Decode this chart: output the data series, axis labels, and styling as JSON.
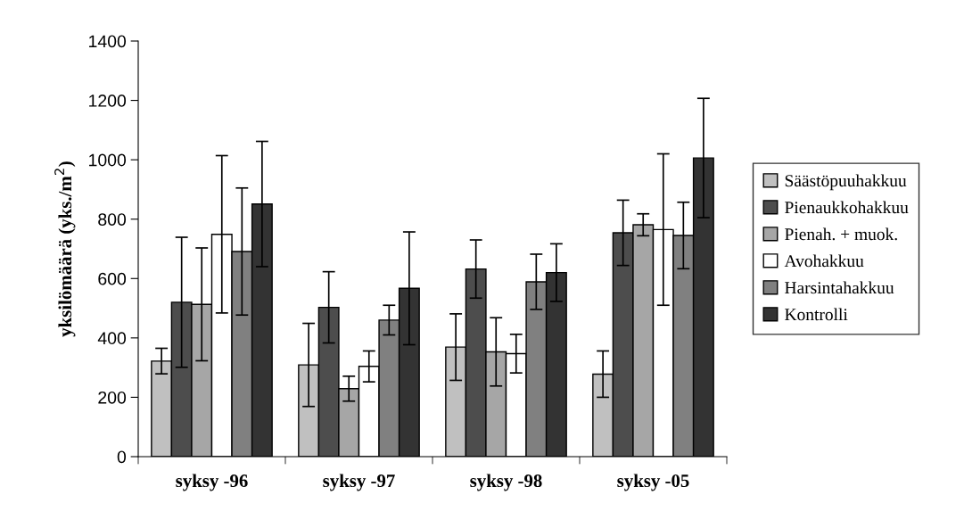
{
  "chart_data": {
    "type": "bar",
    "ylabel": "yksilömäärä (yks./m$^{2}$)",
    "categories": [
      "syksy -96",
      "syksy -97",
      "syksy -98",
      "syksy -05"
    ],
    "series": [
      {
        "name": "Säästöpuuhakkuu",
        "color": "#c0c0c0",
        "values": [
          322,
          309,
          369,
          278
        ],
        "errors": [
          43,
          140,
          112,
          78
        ]
      },
      {
        "name": "Pienaukkohakkuu",
        "color": "#4d4d4d",
        "values": [
          520,
          503,
          632,
          754
        ],
        "errors": [
          219,
          120,
          98,
          110
        ]
      },
      {
        "name": "Pienah. + muok.",
        "color": "#a6a6a6",
        "values": [
          513,
          229,
          353,
          781
        ],
        "errors": [
          190,
          42,
          115,
          37
        ]
      },
      {
        "name": "Avohakkuu",
        "color": "#ffffff",
        "values": [
          749,
          304,
          347,
          765
        ],
        "errors": [
          265,
          52,
          65,
          255
        ]
      },
      {
        "name": "Harsintahakkuu",
        "color": "#808080",
        "values": [
          691,
          460,
          589,
          745
        ],
        "errors": [
          214,
          50,
          93,
          112
        ]
      },
      {
        "name": "Kontrolli",
        "color": "#333333",
        "values": [
          851,
          567,
          620,
          1006
        ],
        "errors": [
          211,
          190,
          97,
          201
        ]
      }
    ],
    "ylim": [
      0,
      1400
    ],
    "yticks": [
      0,
      200,
      400,
      600,
      800,
      1000,
      1200,
      1400
    ],
    "grid": false,
    "legend": "right"
  }
}
